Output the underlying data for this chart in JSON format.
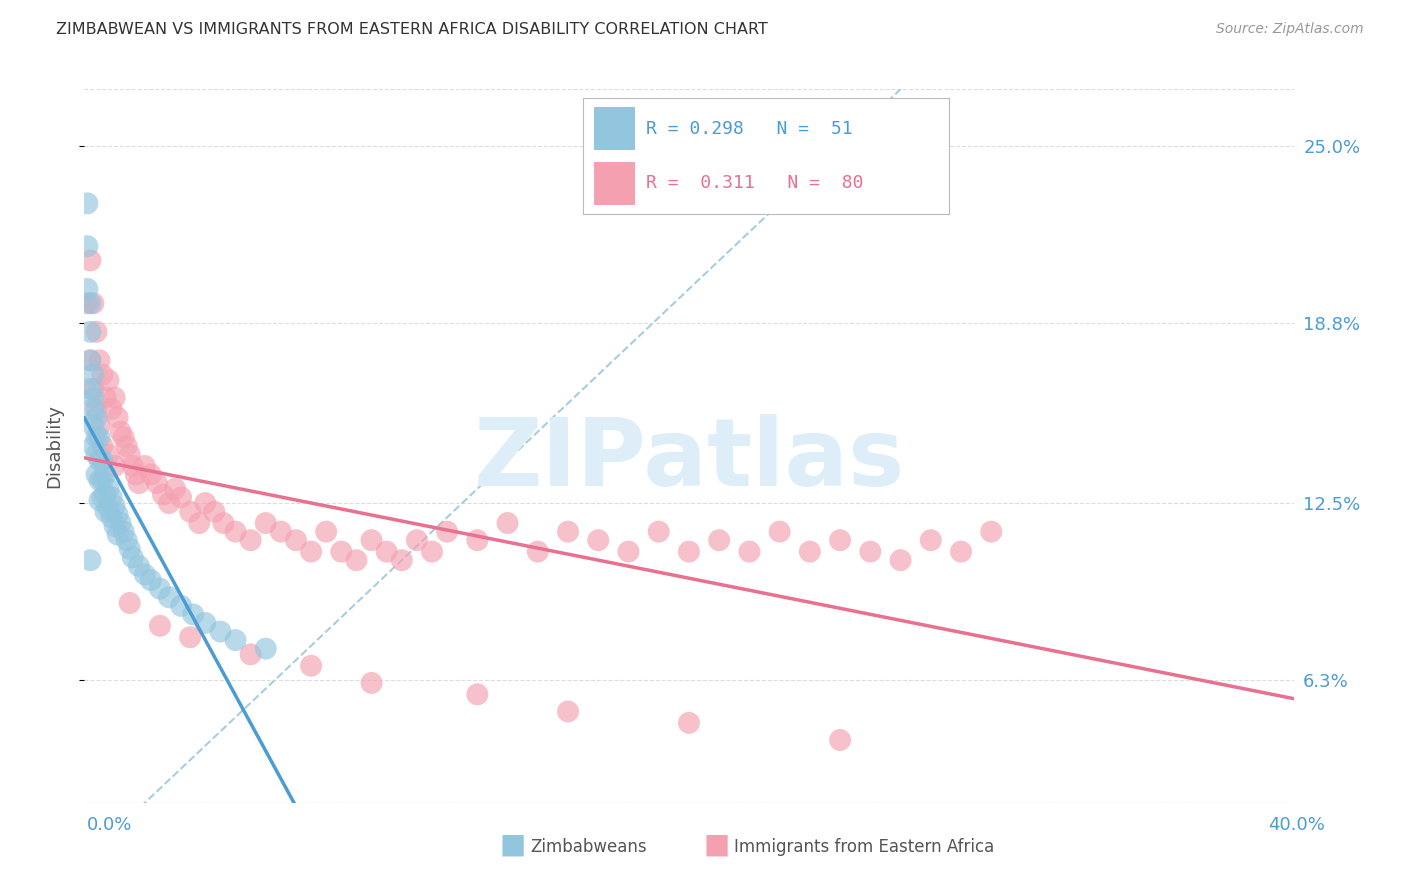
{
  "title": "ZIMBABWEAN VS IMMIGRANTS FROM EASTERN AFRICA DISABILITY CORRELATION CHART",
  "source": "Source: ZipAtlas.com",
  "ylabel": "Disability",
  "yticks": [
    0.063,
    0.125,
    0.188,
    0.25
  ],
  "ytick_labels": [
    "6.3%",
    "12.5%",
    "18.8%",
    "25.0%"
  ],
  "xmin": 0.0,
  "xmax": 0.4,
  "ymin": 0.02,
  "ymax": 0.27,
  "blue_R": 0.298,
  "blue_N": 51,
  "pink_R": 0.311,
  "pink_N": 80,
  "blue_color": "#92c5de",
  "pink_color": "#f4a0b0",
  "blue_line_color": "#4b9cd3",
  "pink_line_color": "#e87090",
  "diagonal_color": "#aacce0",
  "watermark_text": "ZIPatlas",
  "watermark_color": "#ddeef8",
  "grid_color": "#dddddd",
  "title_color": "#333333",
  "source_color": "#999999",
  "axis_label_color": "#4b9cd3",
  "blue_scatter_x": [
    0.001,
    0.001,
    0.001,
    0.002,
    0.002,
    0.002,
    0.002,
    0.003,
    0.003,
    0.003,
    0.003,
    0.003,
    0.004,
    0.004,
    0.004,
    0.004,
    0.005,
    0.005,
    0.005,
    0.005,
    0.006,
    0.006,
    0.006,
    0.007,
    0.007,
    0.007,
    0.008,
    0.008,
    0.009,
    0.009,
    0.01,
    0.01,
    0.011,
    0.011,
    0.012,
    0.013,
    0.014,
    0.015,
    0.016,
    0.018,
    0.02,
    0.022,
    0.025,
    0.028,
    0.032,
    0.036,
    0.04,
    0.045,
    0.05,
    0.06,
    0.002
  ],
  "blue_scatter_y": [
    0.23,
    0.215,
    0.2,
    0.195,
    0.185,
    0.175,
    0.165,
    0.17,
    0.162,
    0.158,
    0.152,
    0.145,
    0.155,
    0.148,
    0.142,
    0.135,
    0.148,
    0.14,
    0.133,
    0.126,
    0.14,
    0.133,
    0.127,
    0.135,
    0.128,
    0.122,
    0.13,
    0.123,
    0.127,
    0.12,
    0.124,
    0.117,
    0.121,
    0.114,
    0.118,
    0.115,
    0.112,
    0.109,
    0.106,
    0.103,
    0.1,
    0.098,
    0.095,
    0.092,
    0.089,
    0.086,
    0.083,
    0.08,
    0.077,
    0.074,
    0.105
  ],
  "pink_scatter_x": [
    0.001,
    0.002,
    0.002,
    0.003,
    0.003,
    0.004,
    0.004,
    0.005,
    0.005,
    0.006,
    0.006,
    0.007,
    0.008,
    0.008,
    0.009,
    0.01,
    0.01,
    0.011,
    0.012,
    0.013,
    0.014,
    0.015,
    0.016,
    0.017,
    0.018,
    0.02,
    0.022,
    0.024,
    0.026,
    0.028,
    0.03,
    0.032,
    0.035,
    0.038,
    0.04,
    0.043,
    0.046,
    0.05,
    0.055,
    0.06,
    0.065,
    0.07,
    0.075,
    0.08,
    0.085,
    0.09,
    0.095,
    0.1,
    0.105,
    0.11,
    0.115,
    0.12,
    0.13,
    0.14,
    0.15,
    0.16,
    0.17,
    0.18,
    0.19,
    0.2,
    0.21,
    0.22,
    0.23,
    0.24,
    0.25,
    0.26,
    0.27,
    0.28,
    0.29,
    0.3,
    0.015,
    0.025,
    0.035,
    0.055,
    0.075,
    0.095,
    0.13,
    0.16,
    0.2,
    0.25
  ],
  "pink_scatter_y": [
    0.195,
    0.21,
    0.175,
    0.195,
    0.165,
    0.185,
    0.158,
    0.175,
    0.152,
    0.17,
    0.145,
    0.162,
    0.168,
    0.142,
    0.158,
    0.162,
    0.138,
    0.155,
    0.15,
    0.148,
    0.145,
    0.142,
    0.138,
    0.135,
    0.132,
    0.138,
    0.135,
    0.132,
    0.128,
    0.125,
    0.13,
    0.127,
    0.122,
    0.118,
    0.125,
    0.122,
    0.118,
    0.115,
    0.112,
    0.118,
    0.115,
    0.112,
    0.108,
    0.115,
    0.108,
    0.105,
    0.112,
    0.108,
    0.105,
    0.112,
    0.108,
    0.115,
    0.112,
    0.118,
    0.108,
    0.115,
    0.112,
    0.108,
    0.115,
    0.108,
    0.112,
    0.108,
    0.115,
    0.108,
    0.112,
    0.108,
    0.105,
    0.112,
    0.108,
    0.115,
    0.09,
    0.082,
    0.078,
    0.072,
    0.068,
    0.062,
    0.058,
    0.052,
    0.048,
    0.042
  ]
}
